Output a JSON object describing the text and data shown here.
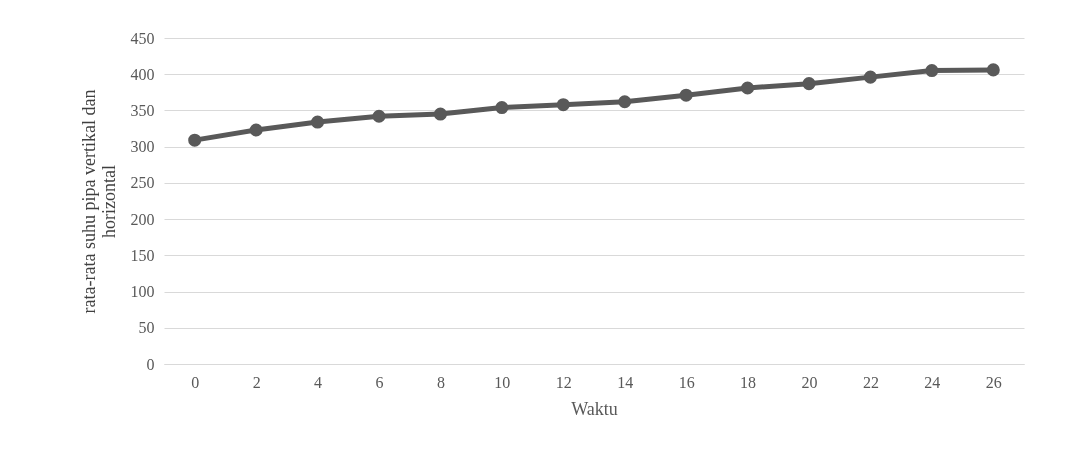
{
  "chart_data": {
    "type": "line",
    "xlabel": "Waktu",
    "ylabel": "rata-rata suhu pipa vertikal dan horizontal",
    "x": [
      0,
      2,
      4,
      6,
      8,
      10,
      12,
      14,
      16,
      18,
      20,
      22,
      24,
      26
    ],
    "series": [
      {
        "color": "#595959",
        "values": [
          309,
          323,
          334,
          342,
          345,
          354,
          358,
          362,
          371,
          381,
          387,
          396,
          405,
          406
        ]
      }
    ],
    "xlim": [
      -1,
      27
    ],
    "xticks": [
      0,
      2,
      4,
      6,
      8,
      10,
      12,
      14,
      16,
      18,
      20,
      22,
      24,
      26
    ],
    "ylim": [
      0,
      450
    ],
    "yticks": [
      0,
      50,
      100,
      150,
      200,
      250,
      300,
      350,
      400,
      450
    ],
    "grid": "y",
    "marker": "circle",
    "line_style": "solid"
  }
}
